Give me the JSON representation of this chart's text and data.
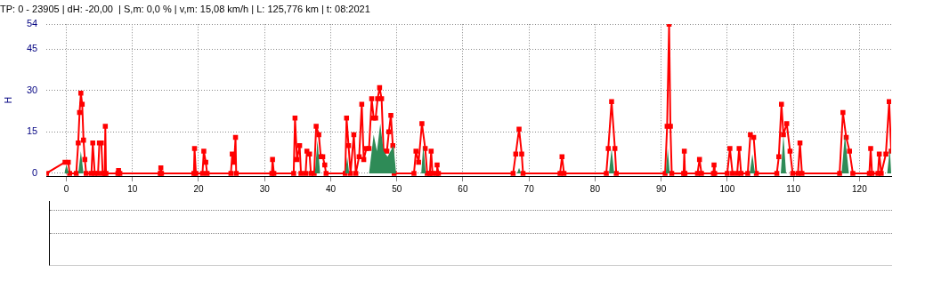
{
  "chart_data": {
    "type": "line",
    "title": "TP: 0 - 23905 | dH: -20,00  | S,m: 0,0 % | v,m: 15,08 km/h | L: 125,776 km | t: 08:2021",
    "ylabel": "H",
    "xlim": [
      -3,
      124.8
    ],
    "ylim": [
      -1,
      54
    ],
    "xticks": [
      0,
      10,
      20,
      30,
      40,
      50,
      60,
      70,
      80,
      90,
      100,
      110,
      120
    ],
    "yticks": [
      0,
      15,
      30,
      45,
      54
    ],
    "grid": true,
    "legend": false,
    "series": [
      {
        "type": "area",
        "color": "#2e8b57",
        "marker": "none",
        "x": [
          -0.3,
          0,
          0.4,
          1.8,
          2.2,
          2.6,
          37.6,
          38,
          38.4,
          42.2,
          42.5,
          42.8,
          45.8,
          46.5,
          47,
          47.5,
          48,
          48.6,
          49.5,
          49.9,
          53.7,
          54,
          54.4,
          68.2,
          68.5,
          68.8,
          82.1,
          82.5,
          82.9,
          90.7,
          91,
          91.3,
          103.4,
          103.8,
          104.2,
          108.1,
          108.5,
          108.9,
          117.3,
          117.8,
          118.4,
          124.2,
          124.6,
          124.8
        ],
        "values": [
          0,
          3,
          0,
          0,
          8,
          0,
          0,
          12,
          0,
          0,
          6,
          0,
          0,
          14,
          8,
          18,
          8,
          6,
          10,
          0,
          0,
          10,
          0,
          0,
          2,
          0,
          0,
          9,
          0,
          0,
          9,
          0,
          0,
          7,
          0,
          0,
          14,
          0,
          0,
          14,
          0,
          0,
          9,
          0
        ]
      },
      {
        "type": "line",
        "color": "#ff0000",
        "marker": "square",
        "line_style": "solid",
        "x": [
          -3,
          -0.2,
          0.3,
          0.5,
          1.5,
          1.8,
          2.0,
          2.2,
          2.4,
          2.6,
          2.8,
          3.0,
          3.8,
          4.0,
          4.3,
          4.8,
          5.0,
          5.3,
          5.5,
          5.8,
          5.9,
          6.0,
          7.8,
          7.9,
          8.1,
          14.2,
          14.3,
          14.4,
          19.3,
          19.4,
          19.6,
          20.6,
          20.8,
          21.1,
          21.3,
          24.9,
          25.1,
          25.4,
          25.6,
          25.7,
          31.1,
          31.2,
          31.4,
          34.4,
          34.6,
          34.9,
          35.3,
          35.5,
          36.2,
          36.4,
          36.8,
          37.0,
          37.5,
          37.8,
          38.2,
          38.5,
          38.8,
          39.1,
          39.3,
          42.2,
          42.4,
          42.7,
          43.0,
          43.5,
          43.8,
          44.3,
          44.7,
          45.0,
          45.4,
          45.8,
          46.2,
          46.5,
          46.8,
          47.1,
          47.4,
          47.7,
          48.0,
          48.5,
          48.8,
          49.1,
          49.4,
          49.6,
          52.6,
          52.9,
          53.3,
          53.8,
          54.3,
          54.6,
          55.0,
          55.2,
          55.4,
          56.0,
          56.1,
          56.3,
          67.6,
          68.0,
          68.5,
          68.9,
          69.1,
          74.7,
          75.0,
          75.3,
          81.7,
          82.0,
          82.5,
          83.0,
          83.2,
          90.6,
          90.9,
          91.2,
          91.4,
          91.6,
          93.4,
          93.5,
          93.6,
          95.5,
          95.8,
          96.1,
          97.9,
          98.0,
          98.1,
          100.0,
          100.4,
          100.8,
          101.5,
          101.8,
          102.1,
          103.1,
          103.5,
          104.0,
          104.4,
          107.5,
          107.8,
          108.2,
          108.5,
          109.0,
          109.5,
          109.9,
          110.7,
          111.0,
          111.3,
          117.0,
          117.5,
          118.0,
          118.5,
          119.0,
          121.5,
          121.7,
          121.9,
          122.8,
          123.0,
          123.3,
          124.0,
          124.5,
          124.8
        ],
        "values": [
          0,
          4,
          4,
          0,
          0,
          11,
          22,
          29,
          25,
          12,
          5,
          0,
          0,
          11,
          0,
          0,
          11,
          11,
          0,
          0,
          17,
          0,
          0,
          1,
          0,
          0,
          2,
          0,
          0,
          9,
          0,
          0,
          8,
          4,
          0,
          0,
          7,
          4,
          13,
          0,
          0,
          5,
          0,
          0,
          20,
          5,
          10,
          0,
          0,
          8,
          7,
          0,
          0,
          17,
          14,
          6,
          6,
          3,
          0,
          0,
          20,
          10,
          0,
          14,
          0,
          6,
          25,
          5,
          9,
          9,
          27,
          20,
          20,
          27,
          31,
          27,
          8,
          8,
          15,
          21,
          10,
          0,
          0,
          8,
          4,
          18,
          9,
          0,
          0,
          8,
          0,
          0,
          3,
          0,
          0,
          7,
          16,
          7,
          0,
          0,
          6,
          0,
          0,
          9,
          26,
          9,
          0,
          0,
          17,
          54,
          17,
          0,
          0,
          8,
          0,
          0,
          5,
          0,
          0,
          3,
          0,
          0,
          9,
          0,
          0,
          9,
          0,
          0,
          14,
          13,
          0,
          0,
          6,
          25,
          14,
          18,
          8,
          0,
          0,
          11,
          0,
          0,
          22,
          13,
          8,
          0,
          0,
          9,
          0,
          0,
          7,
          0,
          7,
          26,
          8
        ]
      }
    ]
  }
}
